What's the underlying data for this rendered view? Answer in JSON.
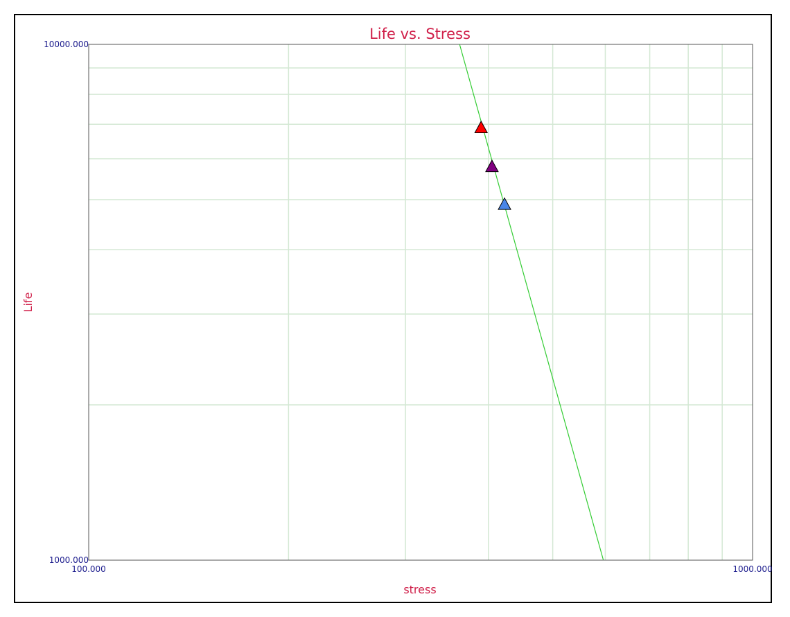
{
  "chart_data": {
    "type": "scatter",
    "title": "Life vs. Stress",
    "xlabel": "stress",
    "ylabel": "Life",
    "xscale": "log",
    "yscale": "log",
    "xlim": [
      100,
      1000
    ],
    "ylim": [
      1000,
      10000
    ],
    "x_tick_labels": [
      "100.000",
      "1000.000"
    ],
    "y_tick_labels": [
      "1000.000",
      "10000.000"
    ],
    "grid": true,
    "series": [
      {
        "values": [
          {
            "x": 390,
            "y": 6900
          }
        ],
        "marker": "triangle",
        "color": "#ff0000"
      },
      {
        "values": [
          {
            "x": 405,
            "y": 5800
          }
        ],
        "marker": "triangle",
        "color": "#800080"
      },
      {
        "values": [
          {
            "x": 423,
            "y": 4900
          }
        ],
        "marker": "triangle",
        "color": "#4a86e8"
      }
    ],
    "fit_line": {
      "points": [
        {
          "x": 362,
          "y": 10000
        },
        {
          "x": 596,
          "y": 1000
        }
      ],
      "color": "#33cc33"
    },
    "colors": {
      "title": "#d0204a",
      "tick_labels": "#1a1a8c",
      "grid": "#d4e8d4",
      "fit_line": "#33cc33"
    }
  }
}
